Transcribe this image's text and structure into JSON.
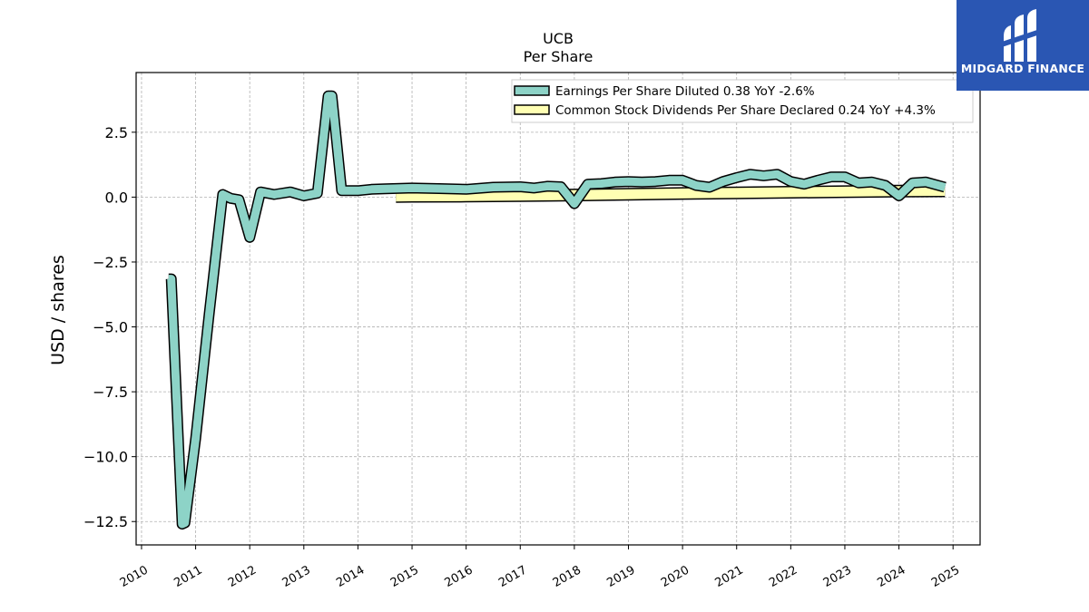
{
  "brand": {
    "name": "MIDGARD FINANCE",
    "color": "#2a56b3"
  },
  "chart_data": {
    "type": "line",
    "title": "UCB",
    "subtitle": "Per  Share",
    "ylabel": "USD / shares",
    "xlabel": "",
    "xlim": [
      2009.9,
      2025.5
    ],
    "ylim": [
      -13.4,
      4.8
    ],
    "yticks": [
      2.5,
      0.0,
      -2.5,
      -5.0,
      -7.5,
      -10.0,
      -12.5
    ],
    "ytick_labels": [
      "2.5",
      "0.0",
      "−2.5",
      "−5.0",
      "−7.5",
      "−10.0",
      "−12.5"
    ],
    "xticks": [
      2010,
      2011,
      2012,
      2013,
      2014,
      2015,
      2016,
      2017,
      2018,
      2019,
      2020,
      2021,
      2022,
      2023,
      2024,
      2025
    ],
    "xtick_labels": [
      "2010",
      "2011",
      "2012",
      "2013",
      "2014",
      "2015",
      "2016",
      "2017",
      "2018",
      "2019",
      "2020",
      "2021",
      "2022",
      "2023",
      "2024",
      "2025"
    ],
    "grid": true,
    "legend_position": "top-right",
    "series": [
      {
        "name": "Earnings Per Share Diluted",
        "legend_label": "Earnings Per Share Diluted  0.38 YoY -2.6%",
        "color": "#8dd3c7",
        "x": [
          2010.5,
          2010.55,
          2010.75,
          2010.8,
          2011.0,
          2011.25,
          2011.5,
          2011.65,
          2011.8,
          2012.0,
          2012.2,
          2012.45,
          2012.75,
          2013.0,
          2013.25,
          2013.45,
          2013.52,
          2013.7,
          2014.0,
          2014.25,
          2014.5,
          2015.0,
          2015.5,
          2016.0,
          2016.5,
          2017.0,
          2017.25,
          2017.5,
          2017.75,
          2018.0,
          2018.25,
          2018.5,
          2018.75,
          2019.0,
          2019.25,
          2019.5,
          2019.75,
          2020.0,
          2020.25,
          2020.5,
          2020.75,
          2021.0,
          2021.25,
          2021.5,
          2021.75,
          2022.0,
          2022.25,
          2022.5,
          2022.75,
          2023.0,
          2023.25,
          2023.5,
          2023.75,
          2024.0,
          2024.25,
          2024.5,
          2024.85
        ],
        "y": [
          -3.15,
          -3.15,
          -12.6,
          -12.55,
          -9.3,
          -4.5,
          0.1,
          -0.05,
          -0.1,
          -1.55,
          0.2,
          0.1,
          0.2,
          0.05,
          0.15,
          3.9,
          3.9,
          0.25,
          0.25,
          0.3,
          0.32,
          0.35,
          0.33,
          0.3,
          0.38,
          0.4,
          0.35,
          0.42,
          0.4,
          -0.25,
          0.5,
          0.52,
          0.58,
          0.6,
          0.58,
          0.6,
          0.65,
          0.65,
          0.45,
          0.38,
          0.6,
          0.75,
          0.88,
          0.82,
          0.88,
          0.6,
          0.5,
          0.65,
          0.78,
          0.78,
          0.55,
          0.58,
          0.45,
          0.05,
          0.55,
          0.58,
          0.38
        ]
      },
      {
        "name": "Common Stock Dividends Per Share Declared",
        "legend_label": "Common Stock Dividends Per Share Declared  0.24 YoY +4.3%",
        "color": "#ffffb3",
        "x": [
          2014.7,
          2015.0,
          2016.0,
          2017.0,
          2018.0,
          2019.0,
          2020.0,
          2021.0,
          2022.0,
          2023.0,
          2024.0,
          2024.85
        ],
        "y": [
          0.02,
          0.03,
          0.04,
          0.06,
          0.08,
          0.11,
          0.14,
          0.16,
          0.19,
          0.21,
          0.23,
          0.24
        ]
      }
    ]
  }
}
